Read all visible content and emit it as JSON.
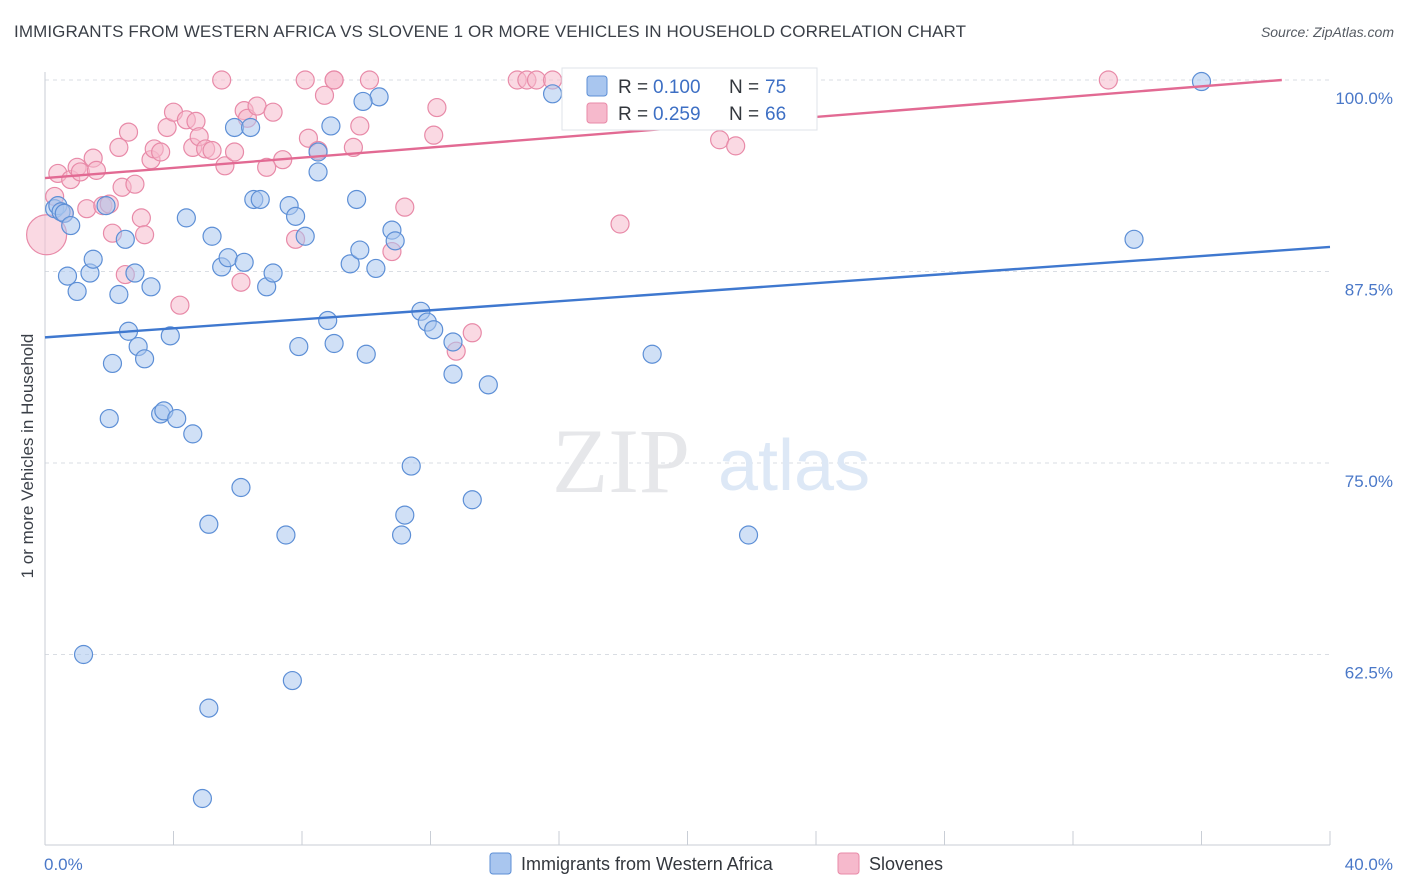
{
  "header": {
    "title": "IMMIGRANTS FROM WESTERN AFRICA VS SLOVENE 1 OR MORE VEHICLES IN HOUSEHOLD CORRELATION CHART",
    "source": "Source: ZipAtlas.com"
  },
  "watermark": {
    "zip": "ZIP",
    "atlas": "atlas"
  },
  "stats": {
    "blue": {
      "r_label": "R =",
      "r_value": "0.100",
      "n_label": "N =",
      "n_value": "75"
    },
    "pink": {
      "r_label": "R =",
      "r_value": "0.259",
      "n_label": "N =",
      "n_value": "66"
    }
  },
  "colors": {
    "blue_fill": "#a9c6ef",
    "blue_stroke": "#5d8fd6",
    "blue_line": "#3f78cf",
    "pink_fill": "#f6b9cc",
    "pink_stroke": "#e88aa8",
    "pink_line": "#e26a93",
    "tick_text": "#4a78c8",
    "grid": "#d9dde3"
  },
  "chart_data": {
    "type": "scatter",
    "title": "IMMIGRANTS FROM WESTERN AFRICA VS SLOVENE 1 OR MORE VEHICLES IN HOUSEHOLD CORRELATION CHART",
    "xlabel": "",
    "ylabel": "1 or more Vehicles in Household",
    "xlim": [
      0,
      40
    ],
    "ylim": [
      51.5,
      102
    ],
    "x_tick_labels": [
      {
        "value": 0,
        "label": "0.0%"
      },
      {
        "value": 40,
        "label": "40.0%"
      }
    ],
    "y_ticks": [
      {
        "value": 100,
        "label": "100.0%"
      },
      {
        "value": 87.5,
        "label": "87.5%"
      },
      {
        "value": 75,
        "label": "75.0%"
      },
      {
        "value": 62.5,
        "label": "62.5%"
      }
    ],
    "series": [
      {
        "name": "Immigrants from Western Africa",
        "color": "#5d8fd6",
        "trend": {
          "x": [
            0,
            40
          ],
          "y": [
            83.2,
            89.1
          ]
        },
        "points": [
          [
            0.3,
            91.6
          ],
          [
            0.4,
            91.8
          ],
          [
            0.5,
            91.4
          ],
          [
            0.6,
            91.3
          ],
          [
            0.7,
            87.2
          ],
          [
            0.8,
            90.5
          ],
          [
            1.0,
            86.2
          ],
          [
            1.4,
            87.4
          ],
          [
            1.5,
            88.3
          ],
          [
            1.9,
            91.8
          ],
          [
            2.0,
            77.9
          ],
          [
            2.1,
            81.5
          ],
          [
            2.3,
            86.0
          ],
          [
            2.5,
            89.6
          ],
          [
            2.6,
            83.6
          ],
          [
            2.8,
            87.4
          ],
          [
            2.9,
            82.6
          ],
          [
            3.1,
            81.8
          ],
          [
            3.3,
            86.5
          ],
          [
            3.6,
            78.2
          ],
          [
            3.7,
            78.4
          ],
          [
            3.9,
            83.3
          ],
          [
            4.1,
            77.9
          ],
          [
            4.4,
            91.0
          ],
          [
            4.6,
            76.9
          ],
          [
            5.1,
            71.0
          ],
          [
            5.2,
            89.8
          ],
          [
            5.5,
            87.8
          ],
          [
            5.7,
            88.4
          ],
          [
            5.9,
            96.9
          ],
          [
            6.1,
            73.4
          ],
          [
            6.2,
            88.1
          ],
          [
            6.5,
            92.2
          ],
          [
            6.7,
            92.2
          ],
          [
            6.9,
            86.5
          ],
          [
            7.1,
            87.4
          ],
          [
            7.5,
            70.3
          ],
          [
            7.6,
            91.8
          ],
          [
            7.8,
            91.1
          ],
          [
            7.7,
            60.8
          ],
          [
            7.9,
            82.6
          ],
          [
            8.1,
            89.8
          ],
          [
            8.5,
            94.0
          ],
          [
            8.5,
            95.3
          ],
          [
            8.8,
            84.3
          ],
          [
            8.9,
            97.0
          ],
          [
            9.0,
            82.8
          ],
          [
            9.5,
            88.0
          ],
          [
            9.7,
            92.2
          ],
          [
            9.8,
            88.9
          ],
          [
            10.0,
            82.1
          ],
          [
            10.3,
            87.7
          ],
          [
            10.4,
            98.9
          ],
          [
            10.8,
            90.2
          ],
          [
            10.9,
            89.5
          ],
          [
            11.2,
            71.6
          ],
          [
            11.1,
            70.3
          ],
          [
            11.4,
            74.8
          ],
          [
            11.7,
            84.9
          ],
          [
            11.9,
            84.2
          ],
          [
            12.1,
            83.7
          ],
          [
            12.7,
            80.8
          ],
          [
            12.7,
            82.9
          ],
          [
            13.3,
            72.6
          ],
          [
            13.8,
            80.1
          ],
          [
            15.8,
            99.1
          ],
          [
            18.9,
            82.1
          ],
          [
            21.9,
            70.3
          ],
          [
            33.9,
            89.6
          ],
          [
            36.0,
            99.9
          ],
          [
            1.2,
            62.5
          ],
          [
            5.1,
            59.0
          ],
          [
            4.9,
            53.1
          ],
          [
            9.9,
            98.6
          ],
          [
            6.4,
            96.9
          ]
        ]
      },
      {
        "name": "Slovenes",
        "color": "#e88aa8",
        "trend": {
          "x": [
            0,
            38.5
          ],
          "y": [
            93.6,
            100.0
          ]
        },
        "points": [
          [
            0.05,
            89.9
          ],
          [
            0.3,
            92.4
          ],
          [
            0.4,
            93.9
          ],
          [
            0.6,
            91.3
          ],
          [
            0.8,
            93.5
          ],
          [
            1.0,
            94.3
          ],
          [
            1.1,
            94.0
          ],
          [
            1.3,
            91.6
          ],
          [
            1.5,
            94.9
          ],
          [
            1.6,
            94.1
          ],
          [
            1.8,
            91.8
          ],
          [
            2.0,
            91.9
          ],
          [
            2.1,
            90.0
          ],
          [
            2.3,
            95.6
          ],
          [
            2.4,
            93.0
          ],
          [
            2.5,
            87.3
          ],
          [
            2.6,
            96.6
          ],
          [
            2.8,
            93.2
          ],
          [
            3.0,
            91.0
          ],
          [
            3.1,
            89.9
          ],
          [
            3.3,
            94.8
          ],
          [
            3.4,
            95.5
          ],
          [
            3.6,
            95.3
          ],
          [
            3.8,
            96.9
          ],
          [
            4.0,
            97.9
          ],
          [
            4.2,
            85.3
          ],
          [
            4.4,
            97.4
          ],
          [
            4.6,
            95.6
          ],
          [
            4.7,
            97.3
          ],
          [
            4.8,
            96.3
          ],
          [
            5.0,
            95.5
          ],
          [
            5.2,
            95.4
          ],
          [
            5.5,
            100.0
          ],
          [
            5.6,
            94.4
          ],
          [
            5.9,
            95.3
          ],
          [
            6.1,
            86.8
          ],
          [
            6.2,
            98.0
          ],
          [
            6.3,
            97.5
          ],
          [
            6.6,
            98.3
          ],
          [
            6.9,
            94.3
          ],
          [
            7.1,
            97.9
          ],
          [
            7.4,
            94.8
          ],
          [
            7.8,
            89.6
          ],
          [
            8.1,
            100.0
          ],
          [
            8.2,
            96.2
          ],
          [
            8.5,
            95.4
          ],
          [
            8.7,
            99.0
          ],
          [
            9.0,
            100.0
          ],
          [
            9.6,
            95.6
          ],
          [
            9.8,
            97.0
          ],
          [
            10.1,
            100.0
          ],
          [
            10.8,
            88.8
          ],
          [
            11.2,
            91.7
          ],
          [
            12.1,
            96.4
          ],
          [
            12.2,
            98.2
          ],
          [
            12.8,
            82.3
          ],
          [
            13.3,
            83.5
          ],
          [
            14.7,
            100.0
          ],
          [
            15.0,
            100.0
          ],
          [
            15.3,
            100.0
          ],
          [
            15.8,
            100.0
          ],
          [
            17.9,
            90.6
          ],
          [
            21.0,
            96.1
          ],
          [
            21.5,
            95.7
          ],
          [
            33.1,
            100.0
          ],
          [
            9.0,
            100.0
          ]
        ]
      }
    ],
    "legend": [
      "Immigrants from Western Africa",
      "Slovenes"
    ],
    "grid": true,
    "legend_placement": "bottom-center"
  }
}
